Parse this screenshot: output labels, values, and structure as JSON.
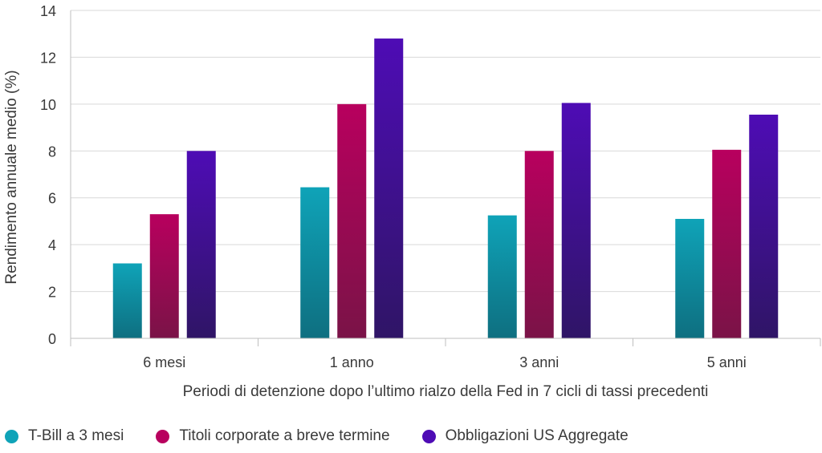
{
  "chart_data": {
    "type": "bar",
    "title": "",
    "xlabel": "Periodi di detenzione dopo l’ultimo rialzo della Fed in 7 cicli di tassi precedenti",
    "ylabel": "Rendimento annuale medio (%)",
    "ylim": [
      0,
      14
    ],
    "yticks": [
      "0",
      "2",
      "4",
      "6",
      "8",
      "10",
      "12",
      "14"
    ],
    "categories": [
      "6 mesi",
      "1 anno",
      "3 anni",
      "5 anni"
    ],
    "grid": "horizontal",
    "legend_position": "bottom-left",
    "series": [
      {
        "name": "T-Bill a 3 mesi",
        "color": "#0fa3b8",
        "color_dark": "#0e6f80",
        "values": [
          3.2,
          6.45,
          5.25,
          5.1
        ]
      },
      {
        "name": "Titoli corporate a breve termine",
        "color": "#b8005e",
        "color_dark": "#7a1347",
        "values": [
          5.3,
          10.0,
          8.0,
          8.05
        ]
      },
      {
        "name": "Obbligazioni US Aggregate",
        "color": "#4e0cb5",
        "color_dark": "#2f1566",
        "values": [
          8.0,
          12.8,
          10.05,
          9.55
        ]
      }
    ]
  }
}
